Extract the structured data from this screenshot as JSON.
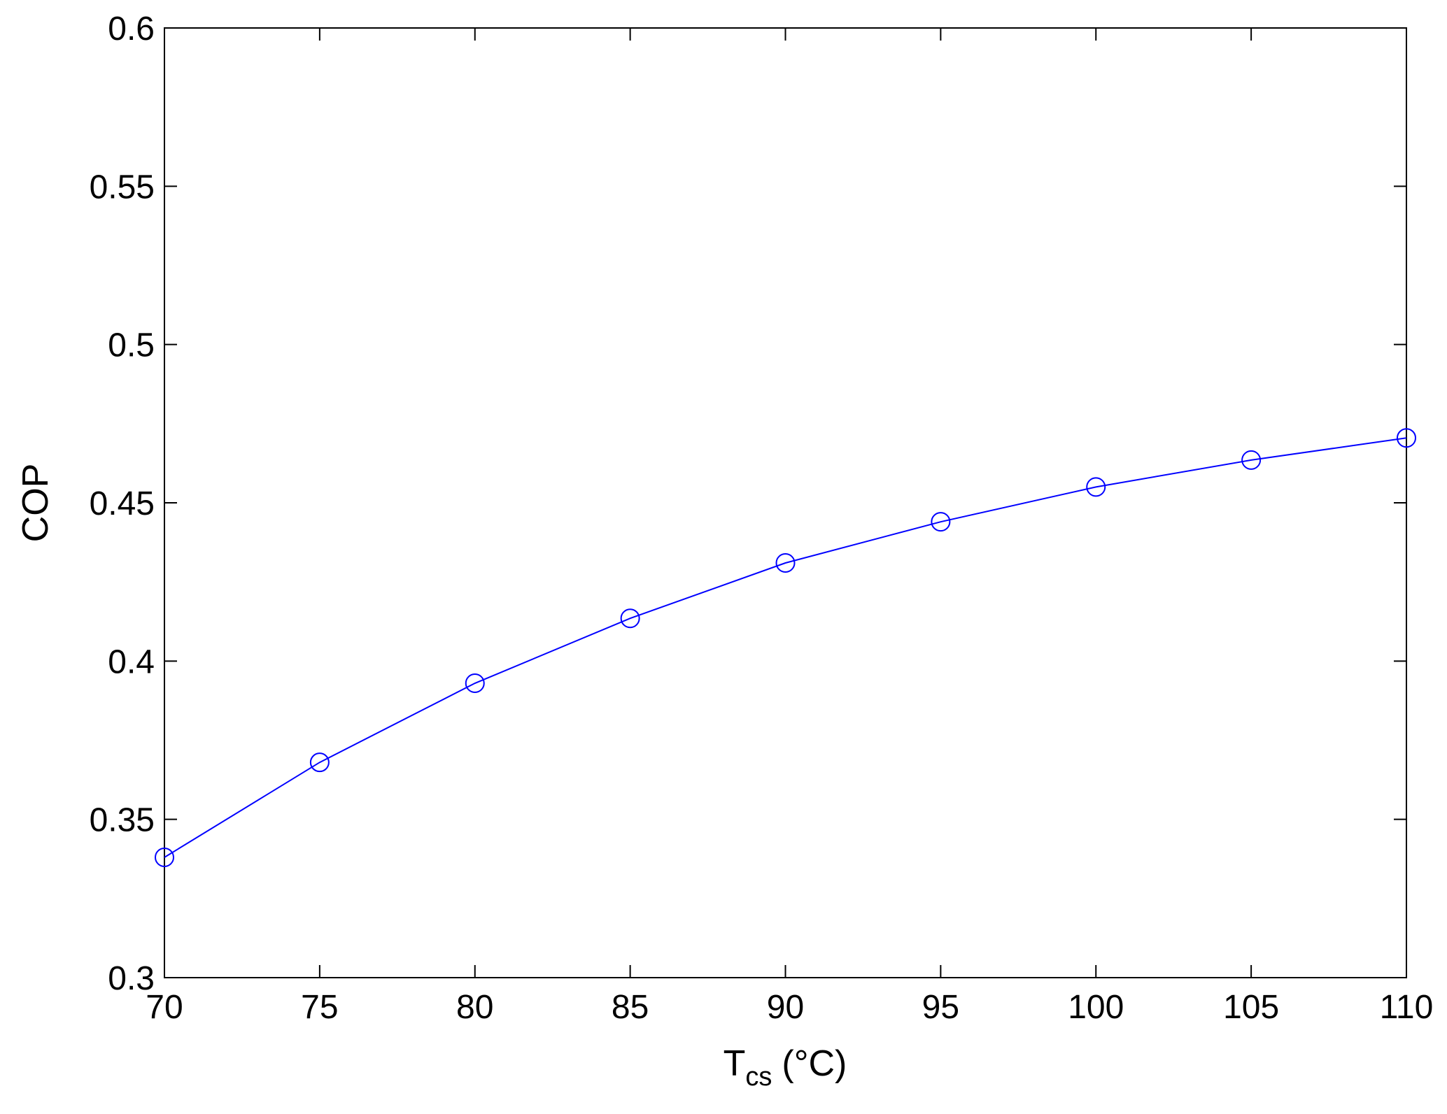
{
  "chart_data": {
    "type": "line",
    "title": "",
    "xlabel": {
      "main": "T",
      "sub": "cs",
      "unit": "(°C)"
    },
    "ylabel": "COP",
    "xlim": [
      70,
      110
    ],
    "ylim": [
      0.3,
      0.6
    ],
    "xticks": [
      70,
      75,
      80,
      85,
      90,
      95,
      100,
      105,
      110
    ],
    "yticks": [
      0.3,
      0.35,
      0.4,
      0.45,
      0.5,
      0.55,
      0.6
    ],
    "ytick_labels": [
      "0.3",
      "0.35",
      "0.4",
      "0.45",
      "0.5",
      "0.55",
      "0.6"
    ],
    "grid": false,
    "series": [
      {
        "marker": "circle",
        "color": "#0000ff",
        "x": [
          70,
          75,
          80,
          85,
          90,
          95,
          100,
          105,
          110
        ],
        "y": [
          0.338,
          0.368,
          0.393,
          0.4135,
          0.431,
          0.444,
          0.455,
          0.4635,
          0.4705
        ]
      }
    ]
  }
}
